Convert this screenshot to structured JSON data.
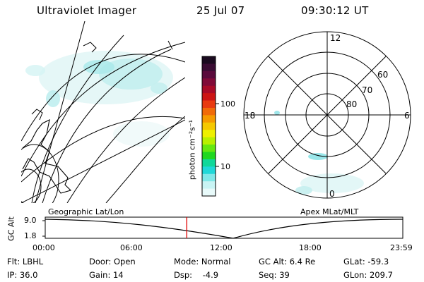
{
  "header": {
    "title": "Ultraviolet Imager",
    "date": "25 Jul 07",
    "time": "09:30:12 UT"
  },
  "colorbar": {
    "unit_label": "photon cm⁻²s⁻¹",
    "ticks": [
      "100",
      "10"
    ],
    "colors": [
      "#1a0a1f",
      "#3a0c33",
      "#5a0a3c",
      "#800a38",
      "#a80a28",
      "#cc1414",
      "#e83a10",
      "#f06a08",
      "#f59a00",
      "#f5c800",
      "#eef000",
      "#b8f000",
      "#66e810",
      "#20d820",
      "#10d89a",
      "#20d8d8",
      "#80e8e8",
      "#c8f4f4",
      "#e8fafa"
    ]
  },
  "geo_panel": {
    "label": "Geographic Lat/Lon"
  },
  "polar_panel": {
    "label": "Apex MLat/MLT",
    "mlt_labels": [
      "12",
      "18",
      "6",
      "0"
    ],
    "mlat_labels": [
      "60",
      "70",
      "80"
    ]
  },
  "timeline": {
    "axis_label": "GC Alt",
    "y_ticks": [
      "9.0",
      "1.8"
    ],
    "x_ticks": [
      "00:00",
      "06:00",
      "12:00",
      "18:00",
      "23:59"
    ],
    "current_time_hours": 9.5
  },
  "footer": {
    "col1": [
      "Flt: LBHL",
      "IP: 36.0"
    ],
    "col2": [
      "Door: Open",
      "Gain: 14"
    ],
    "col3": [
      "Mode: Normal",
      "Dsp:    -4.9"
    ],
    "col4": [
      "GC Alt: 6.4 Re",
      "Seq: 39"
    ],
    "col5": [
      "GLat: -59.3",
      "GLon: 209.7"
    ]
  }
}
